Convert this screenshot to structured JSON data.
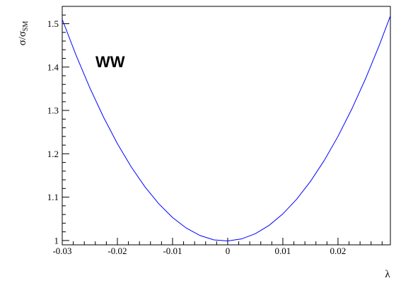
{
  "chart_data": {
    "type": "line",
    "title": "",
    "xlabel": "λ",
    "ylabel": "σ/σ",
    "ylabel_subscript": "SM",
    "annotation": "WW",
    "xlim": [
      -0.03,
      0.0295
    ],
    "ylim": [
      0.99,
      1.54
    ],
    "x_ticks": [
      -0.03,
      -0.02,
      -0.01,
      0,
      0.01,
      0.02
    ],
    "x_tick_labels": [
      "-0.03",
      "-0.02",
      "-0.01",
      "0",
      "0.01",
      "0.02"
    ],
    "y_ticks": [
      1.0,
      1.1,
      1.2,
      1.3,
      1.4,
      1.5
    ],
    "y_tick_labels": [
      "1",
      "1.1",
      "1.2",
      "1.3",
      "1.4",
      "1.5"
    ],
    "grid": false,
    "series": [
      {
        "color": "#0000ff",
        "x": [
          -0.03,
          -0.0275,
          -0.025,
          -0.0225,
          -0.02,
          -0.0175,
          -0.015,
          -0.0125,
          -0.01,
          -0.0075,
          -0.005,
          -0.0025,
          0,
          0.0025,
          0.005,
          0.0075,
          0.01,
          0.0125,
          0.015,
          0.0175,
          0.02,
          0.0225,
          0.025,
          0.0275,
          0.0295
        ],
        "y": [
          1.51,
          1.4275,
          1.3522,
          1.2842,
          1.2234,
          1.1699,
          1.1237,
          1.0847,
          1.053,
          1.0286,
          1.0114,
          1.0015,
          0.999,
          1.0036,
          1.0156,
          1.0348,
          1.0613,
          1.0951,
          1.1362,
          1.1845,
          1.2402,
          1.3031,
          1.3733,
          1.4508,
          1.518
        ]
      }
    ]
  }
}
